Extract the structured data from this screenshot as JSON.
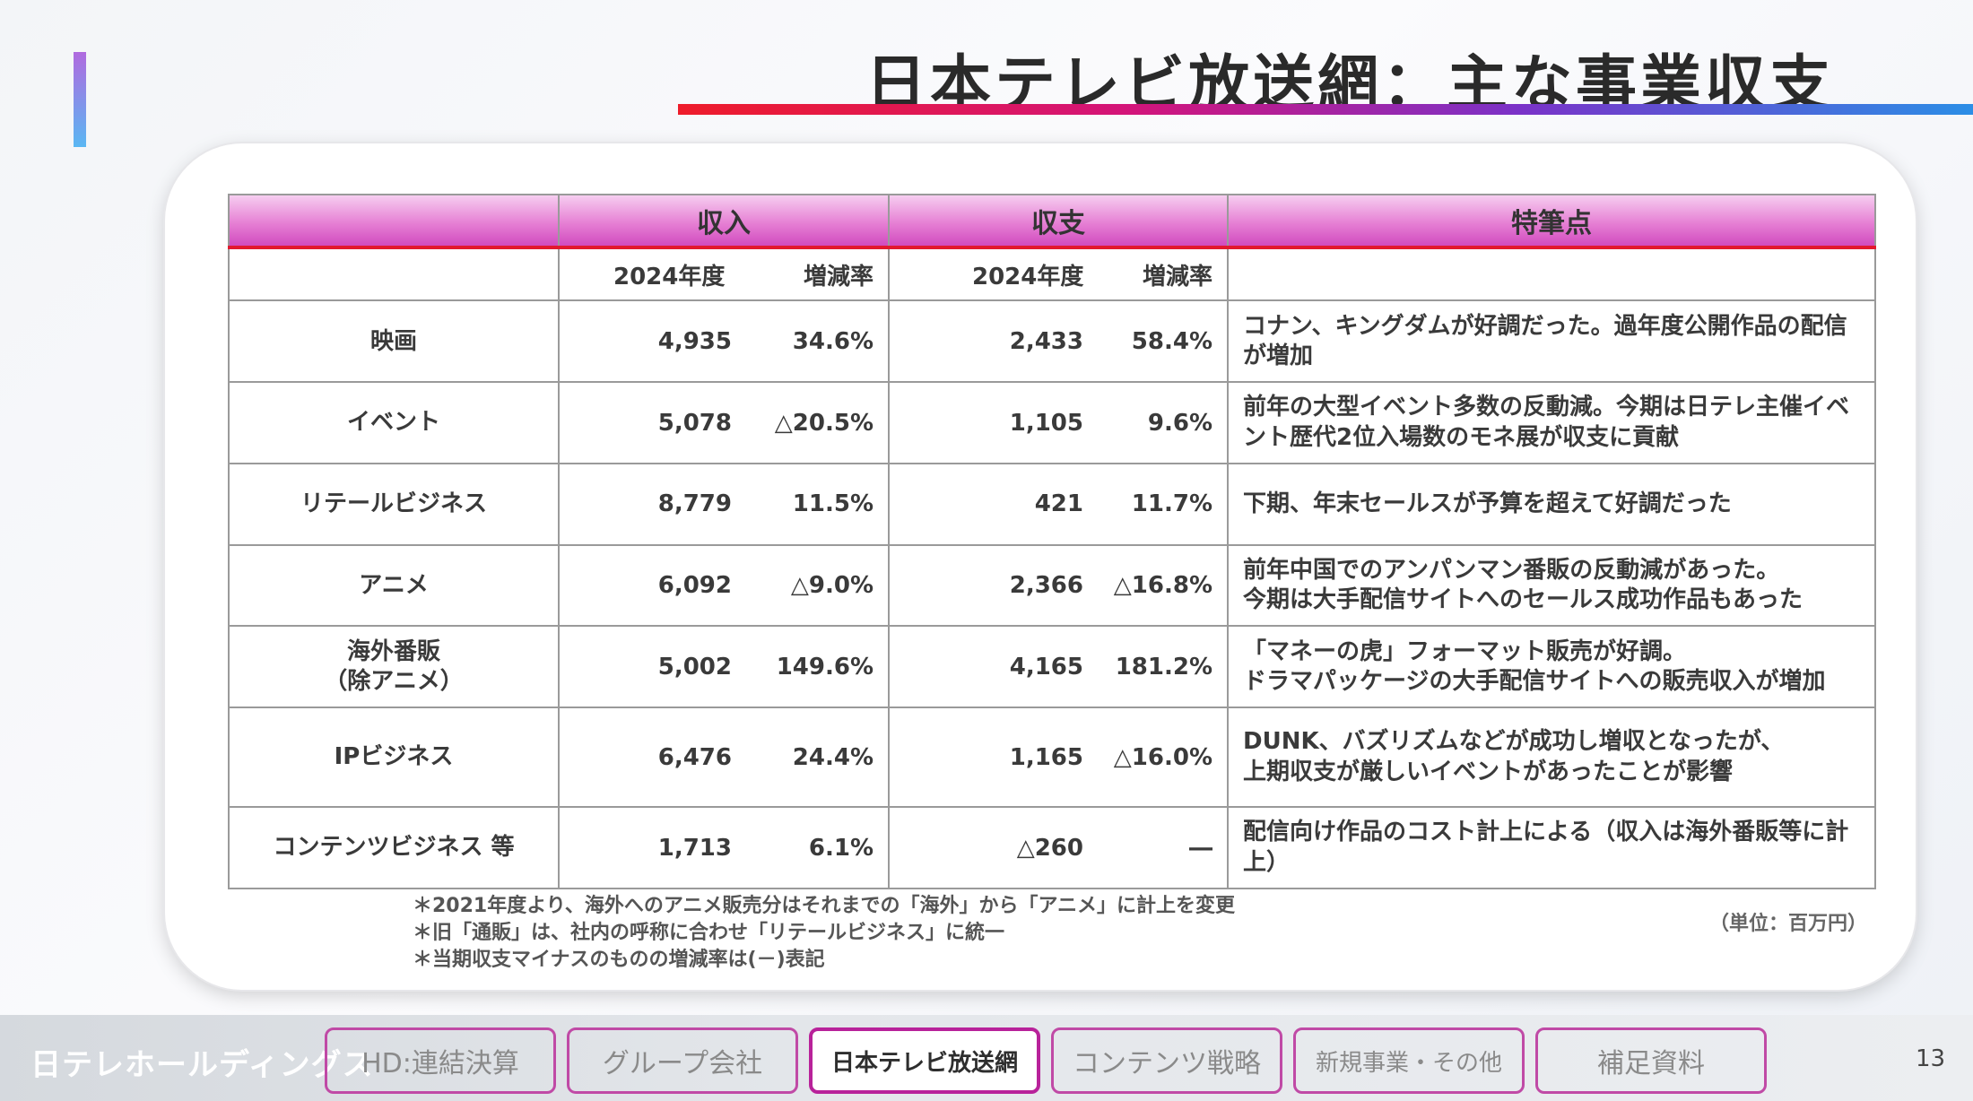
{
  "slide": {
    "title": "日本テレビ放送網：主な事業収支",
    "page_number": "13"
  },
  "table": {
    "group_headers": {
      "blank": "",
      "revenue": "収入",
      "balance": "収支",
      "remarks": "特筆点"
    },
    "sub_headers": {
      "revenue_year": "2024年度",
      "revenue_rate": "増減率",
      "balance_year": "2024年度",
      "balance_rate": "増減率"
    },
    "rows": [
      {
        "category": "映画",
        "revenue": "4,935",
        "revenue_rate": "34.6%",
        "balance": "2,433",
        "balance_rate": "58.4%",
        "note": "コナン、キングダムが好調だった。過年度公開作品の配信が増加"
      },
      {
        "category": "イベント",
        "revenue": "5,078",
        "revenue_rate": "△20.5%",
        "balance": "1,105",
        "balance_rate": "9.6%",
        "note": "前年の大型イベント多数の反動減。今期は日テレ主催イベント歴代2位入場数のモネ展が収支に貢献"
      },
      {
        "category": "リテールビジネス",
        "revenue": "8,779",
        "revenue_rate": "11.5%",
        "balance": "421",
        "balance_rate": "11.7%",
        "note": "下期、年末セールスが予算を超えて好調だった"
      },
      {
        "category": "アニメ",
        "revenue": "6,092",
        "revenue_rate": "△9.0%",
        "balance": "2,366",
        "balance_rate": "△16.8%",
        "note": "前年中国でのアンパンマン番販の反動減があった。\n今期は大手配信サイトへのセールス成功作品もあった"
      },
      {
        "category": "海外番販\n（除アニメ）",
        "revenue": "5,002",
        "revenue_rate": "149.6%",
        "balance": "4,165",
        "balance_rate": "181.2%",
        "note": "「マネーの虎」フォーマット販売が好調。\nドラマパッケージの大手配信サイトへの販売収入が増加"
      },
      {
        "category": "IPビジネス",
        "revenue": "6,476",
        "revenue_rate": "24.4%",
        "balance": "1,165",
        "balance_rate": "△16.0%",
        "note": "DUNK、バズリズムなどが成功し増収となったが、\n上期収支が厳しいイベントがあったことが影響"
      },
      {
        "category": "コンテンツビジネス 等",
        "revenue": "1,713",
        "revenue_rate": "6.1%",
        "balance": "△260",
        "balance_rate": "―",
        "note": "配信向け作品のコスト計上による（収入は海外番販等に計上）"
      }
    ]
  },
  "footnotes": [
    "＊2021年度より、海外へのアニメ販売分はそれまでの「海外」から「アニメ」に計上を変更",
    "＊旧「通販」は、社内の呼称に合わせ「リテールビジネス」に統一",
    "＊当期収支マイナスのものの増減率は(－)表記"
  ],
  "unit_label": "（単位：百万円）",
  "footer": {
    "logo": "日テレホールディングス",
    "tabs": [
      {
        "label": "HD:連結決算",
        "active": false
      },
      {
        "label": "グループ会社",
        "active": false
      },
      {
        "label": "日本テレビ放送網",
        "active": true
      },
      {
        "label": "コンテンツ戦略",
        "active": false
      },
      {
        "label": "新規事業・その他",
        "active": false
      },
      {
        "label": "補足資料",
        "active": false
      }
    ]
  }
}
